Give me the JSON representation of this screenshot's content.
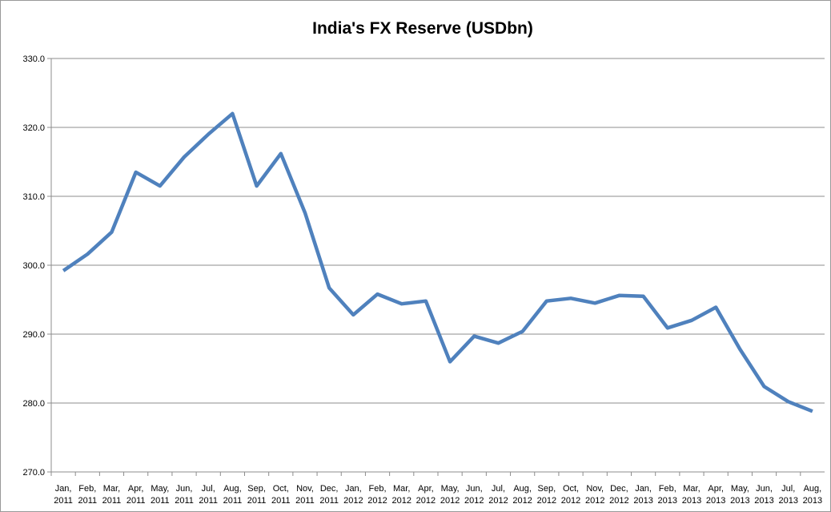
{
  "chart_data": {
    "type": "line",
    "title": "India's FX Reserve (USDbn)",
    "categories": [
      "Jan, 2011",
      "Feb, 2011",
      "Mar, 2011",
      "Apr, 2011",
      "May, 2011",
      "Jun, 2011",
      "Jul, 2011",
      "Aug, 2011",
      "Sep, 2011",
      "Oct, 2011",
      "Nov, 2011",
      "Dec, 2011",
      "Jan, 2012",
      "Feb, 2012",
      "Mar, 2012",
      "Apr, 2012",
      "May, 2012",
      "Jun, 2012",
      "Jul, 2012",
      "Aug, 2012",
      "Sep, 2012",
      "Oct, 2012",
      "Nov, 2012",
      "Dec, 2012",
      "Jan, 2013",
      "Feb, 2013",
      "Mar, 2013",
      "Apr, 2013",
      "May, 2013",
      "Jun, 2013",
      "Jul, 2013",
      "Aug, 2013"
    ],
    "values": [
      299.2,
      301.6,
      304.8,
      313.5,
      311.5,
      315.7,
      319.0,
      322.0,
      311.5,
      316.2,
      307.6,
      296.7,
      292.8,
      295.8,
      294.4,
      294.8,
      286.0,
      289.7,
      288.7,
      290.4,
      294.8,
      295.2,
      294.5,
      295.6,
      295.5,
      290.9,
      292.0,
      293.9,
      287.8,
      282.4,
      280.2,
      278.8
    ],
    "color": "#4f81bd",
    "ylim": [
      270,
      330
    ],
    "yticks": [
      {
        "value": 270,
        "label": "270.0"
      },
      {
        "value": 280,
        "label": "280.0"
      },
      {
        "value": 290,
        "label": "290.0"
      },
      {
        "value": 300,
        "label": "300.0"
      },
      {
        "value": 310,
        "label": "310.0"
      },
      {
        "value": 320,
        "label": "320.0"
      },
      {
        "value": 330,
        "label": "330.0"
      }
    ],
    "grid": true
  }
}
